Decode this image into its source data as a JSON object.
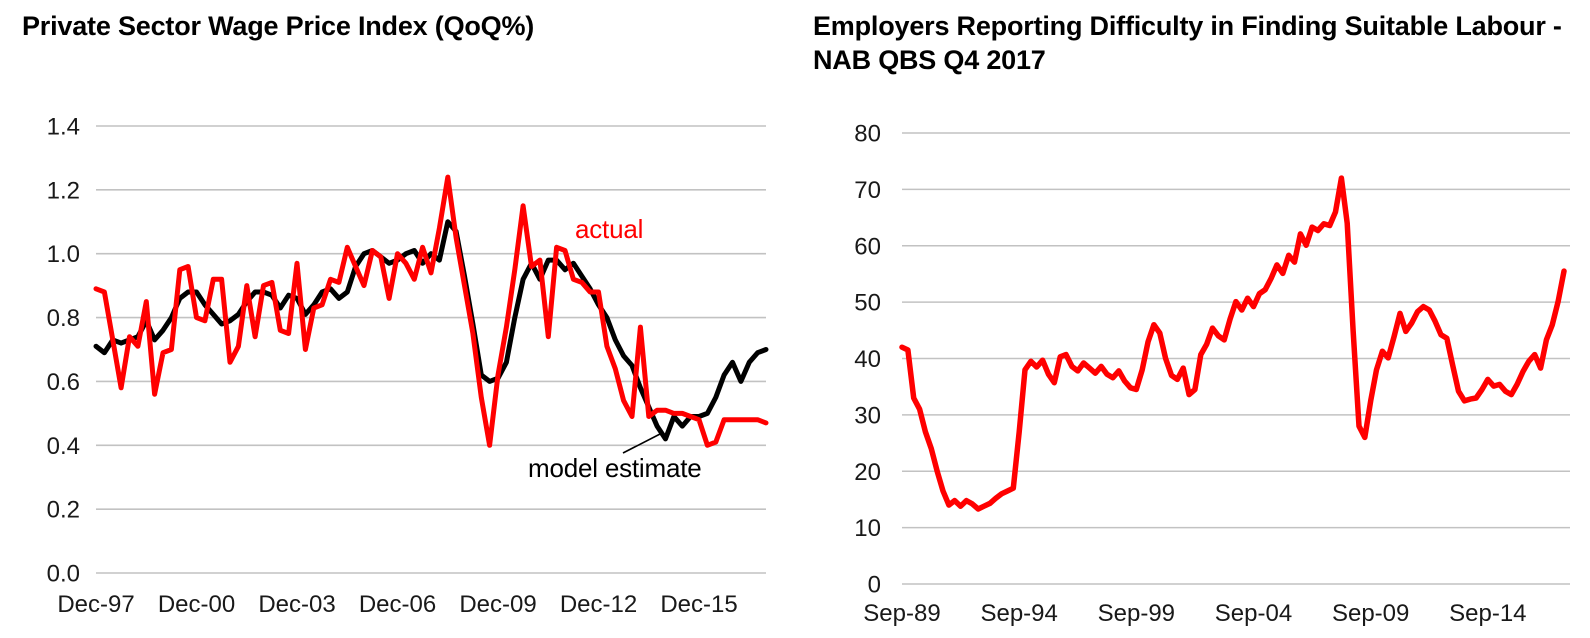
{
  "page": {
    "background_color": "#ffffff",
    "grid_color": "#c2c2c2",
    "text_color": "#191919",
    "accent_red": "#ff0000"
  },
  "chart_data": [
    {
      "type": "line",
      "title": "Private Sector Wage Price Index (QoQ%)",
      "xlabel": "",
      "ylabel": "",
      "frequency": "quarterly",
      "x_start": "Dec-1997",
      "x_end": "Dec-2017",
      "ylim": [
        0.0,
        1.4
      ],
      "grid": true,
      "legend_position": "inline-annotations",
      "y_ticks": [
        {
          "label": "1.4",
          "value": 1.4
        },
        {
          "label": "1.2",
          "value": 1.2
        },
        {
          "label": "1.0",
          "value": 1.0
        },
        {
          "label": "0.8",
          "value": 0.8
        },
        {
          "label": "0.6",
          "value": 0.6
        },
        {
          "label": "0.4",
          "value": 0.4
        },
        {
          "label": "0.2",
          "value": 0.2
        },
        {
          "label": "0.0",
          "value": 0.0
        }
      ],
      "x_ticks": [
        {
          "label": "Dec-97",
          "q": 0
        },
        {
          "label": "Dec-00",
          "q": 12
        },
        {
          "label": "Dec-03",
          "q": 24
        },
        {
          "label": "Dec-06",
          "q": 36
        },
        {
          "label": "Dec-09",
          "q": 48
        },
        {
          "label": "Dec-12",
          "q": 60
        },
        {
          "label": "Dec-15",
          "q": 72
        }
      ],
      "series": [
        {
          "name": "model estimate",
          "color": "#000000",
          "values": [
            0.71,
            0.69,
            0.73,
            0.72,
            0.73,
            0.74,
            0.79,
            0.73,
            0.76,
            0.8,
            0.86,
            0.88,
            0.88,
            0.84,
            0.81,
            0.78,
            0.79,
            0.81,
            0.85,
            0.88,
            0.88,
            0.87,
            0.83,
            0.87,
            0.86,
            0.81,
            0.84,
            0.88,
            0.89,
            0.86,
            0.88,
            0.96,
            1.0,
            1.01,
            0.99,
            0.97,
            0.98,
            1.0,
            1.01,
            0.97,
            1.0,
            0.98,
            1.1,
            1.07,
            0.93,
            0.78,
            0.62,
            0.6,
            0.61,
            0.66,
            0.8,
            0.92,
            0.97,
            0.92,
            0.98,
            0.98,
            0.95,
            0.97,
            0.93,
            0.89,
            0.84,
            0.8,
            0.73,
            0.68,
            0.65,
            0.58,
            0.52,
            0.46,
            0.42,
            0.49,
            0.46,
            0.49,
            0.49,
            0.5,
            0.55,
            0.62,
            0.66,
            0.6,
            0.66,
            0.69,
            0.7
          ]
        },
        {
          "name": "actual",
          "color": "#ff0000",
          "values": [
            0.89,
            0.88,
            0.73,
            0.58,
            0.74,
            0.71,
            0.85,
            0.56,
            0.69,
            0.7,
            0.95,
            0.96,
            0.8,
            0.79,
            0.92,
            0.92,
            0.66,
            0.71,
            0.9,
            0.74,
            0.9,
            0.91,
            0.76,
            0.75,
            0.97,
            0.7,
            0.83,
            0.84,
            0.92,
            0.91,
            1.02,
            0.96,
            0.9,
            1.01,
            0.99,
            0.86,
            1.0,
            0.97,
            0.92,
            1.02,
            0.94,
            1.08,
            1.24,
            1.05,
            0.9,
            0.75,
            0.55,
            0.4,
            0.62,
            0.77,
            0.95,
            1.15,
            0.96,
            0.98,
            0.74,
            1.02,
            1.01,
            0.92,
            0.91,
            0.88,
            0.88,
            0.71,
            0.64,
            0.54,
            0.49,
            0.77,
            0.49,
            0.51,
            0.51,
            0.5,
            0.5,
            0.49,
            0.48,
            0.4,
            0.41,
            0.48,
            0.48,
            0.48,
            0.48,
            0.48,
            0.47
          ]
        }
      ],
      "annotations": [
        {
          "text": "actual",
          "color": "#ff0000",
          "target_series": "actual"
        },
        {
          "text": "model estimate",
          "color": "#000000",
          "target_series": "model estimate"
        }
      ]
    },
    {
      "type": "line",
      "title": "Employers Reporting Difficulty in Finding Suitable Labour - NAB QBS Q4 2017",
      "xlabel": "",
      "ylabel": "",
      "frequency": "quarterly",
      "x_start": "Sep-1989",
      "x_end": "Dec-2017",
      "ylim": [
        0,
        80
      ],
      "grid": true,
      "legend_position": "none",
      "y_ticks": [
        {
          "label": "80",
          "value": 80
        },
        {
          "label": "70",
          "value": 70
        },
        {
          "label": "60",
          "value": 60
        },
        {
          "label": "50",
          "value": 50
        },
        {
          "label": "40",
          "value": 40
        },
        {
          "label": "30",
          "value": 30
        },
        {
          "label": "20",
          "value": 20
        },
        {
          "label": "10",
          "value": 10
        },
        {
          "label": "0",
          "value": 0
        }
      ],
      "x_ticks": [
        {
          "label": "Sep-89",
          "q": 0
        },
        {
          "label": "Sep-94",
          "q": 20
        },
        {
          "label": "Sep-99",
          "q": 40
        },
        {
          "label": "Sep-04",
          "q": 60
        },
        {
          "label": "Sep-09",
          "q": 80
        },
        {
          "label": "Sep-14",
          "q": 100
        }
      ],
      "series": [
        {
          "name": "Employers reporting difficulty finding suitable labour (%)",
          "color": "#ff0000",
          "values": [
            42,
            41.5,
            33,
            31,
            27,
            24,
            20,
            16.5,
            14,
            14.8,
            13.8,
            14.8,
            14.2,
            13.3,
            13.8,
            14.3,
            15.2,
            16,
            16.5,
            17,
            27,
            38,
            39.5,
            38.5,
            39.7,
            37.2,
            35.7,
            40.3,
            40.7,
            38.6,
            37.8,
            39.2,
            38.3,
            37.4,
            38.6,
            37.2,
            36.6,
            37.8,
            36,
            34.8,
            34.5,
            38,
            43,
            46,
            44.5,
            40,
            37,
            36.3,
            38.3,
            33.6,
            34.5,
            40.7,
            42.5,
            45.4,
            44,
            43.3,
            47,
            50.1,
            48.6,
            50.7,
            49.2,
            51.5,
            52.2,
            54.2,
            56.6,
            55.1,
            58.3,
            57.1,
            62.1,
            60.1,
            63.3,
            62.7,
            63.9,
            63.6,
            66,
            72,
            64,
            45,
            28,
            26,
            32.5,
            38,
            41.3,
            40.1,
            43.9,
            48,
            44.8,
            46.3,
            48.3,
            49.2,
            48.6,
            46.6,
            44.2,
            43.6,
            38.8,
            34.2,
            32.5,
            32.8,
            33,
            34.5,
            36.3,
            35.1,
            35.4,
            34.2,
            33.6,
            35.4,
            37.7,
            39.5,
            40.7,
            38.3,
            43.3,
            46,
            50.1,
            55.5
          ]
        }
      ],
      "annotations": []
    }
  ]
}
